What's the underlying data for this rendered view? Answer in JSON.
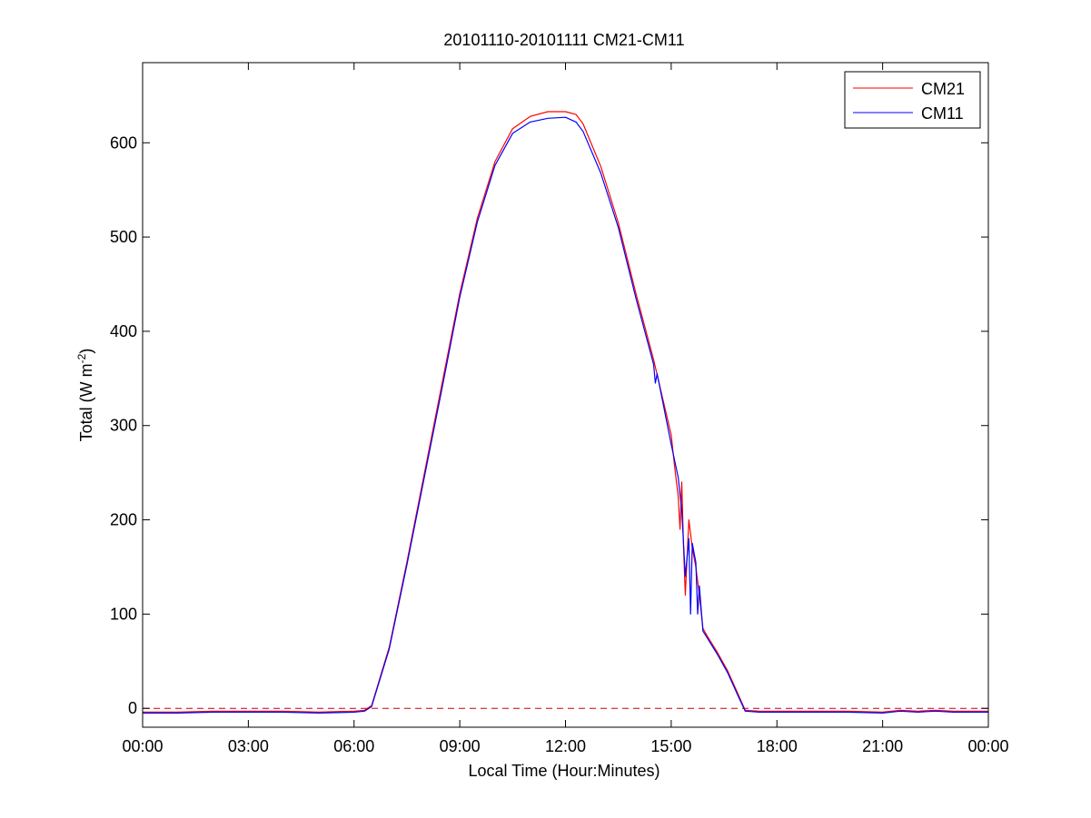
{
  "chart_data": {
    "type": "line",
    "title": "20101110-20101111 CM21-CM11",
    "xlabel": "Local Time (Hour:Minutes)",
    "ylabel_main": "Total (W m",
    "ylabel_sup": "-2",
    "ylabel_close": ")",
    "xlim": [
      0,
      24
    ],
    "ylim": [
      -20,
      685
    ],
    "xticks": [
      0,
      3,
      6,
      9,
      12,
      15,
      18,
      21,
      24
    ],
    "xtick_labels": [
      "00:00",
      "03:00",
      "06:00",
      "09:00",
      "12:00",
      "15:00",
      "18:00",
      "21:00",
      "00:00"
    ],
    "yticks": [
      0,
      100,
      200,
      300,
      400,
      500,
      600
    ],
    "ytick_labels": [
      "0",
      "100",
      "200",
      "300",
      "400",
      "500",
      "600"
    ],
    "grid": false,
    "legend_position": "top-right",
    "reference_line": {
      "y": 0,
      "color": "#cc0000",
      "style": "dashed"
    },
    "series": [
      {
        "name": "CM21",
        "color": "#ff0000",
        "x": [
          0,
          1,
          2,
          3,
          4,
          5,
          6,
          6.3,
          6.5,
          7,
          7.5,
          8,
          8.5,
          9,
          9.5,
          10,
          10.5,
          11,
          11.5,
          12,
          12.3,
          12.5,
          13,
          13.5,
          14,
          14.5,
          15,
          15.1,
          15.2,
          15.25,
          15.3,
          15.35,
          15.4,
          15.5,
          15.6,
          15.7,
          15.8,
          15.9,
          16,
          16.3,
          16.6,
          16.9,
          17.1,
          17.5,
          18,
          19,
          20,
          21,
          21.5,
          22,
          22.5,
          23,
          24
        ],
        "y": [
          -4,
          -4,
          -3,
          -3,
          -3,
          -4,
          -3,
          -2,
          3,
          65,
          155,
          250,
          345,
          440,
          520,
          580,
          615,
          628,
          633,
          633,
          630,
          620,
          575,
          515,
          440,
          370,
          290,
          255,
          225,
          190,
          240,
          170,
          120,
          200,
          170,
          150,
          120,
          85,
          78,
          60,
          40,
          15,
          -2,
          -3,
          -3,
          -3,
          -3,
          -4,
          -2,
          -3,
          -2,
          -3,
          -3
        ]
      },
      {
        "name": "CM11",
        "color": "#0000ff",
        "x": [
          0,
          1,
          2,
          3,
          4,
          5,
          6,
          6.3,
          6.5,
          7,
          7.5,
          8,
          8.5,
          9,
          9.5,
          10,
          10.5,
          11,
          11.5,
          12,
          12.3,
          12.5,
          13,
          13.5,
          14,
          14.5,
          14.55,
          14.6,
          15,
          15.2,
          15.3,
          15.4,
          15.5,
          15.55,
          15.6,
          15.7,
          15.75,
          15.8,
          15.9,
          16,
          16.3,
          16.6,
          16.9,
          17.1,
          17.5,
          18,
          19,
          20,
          21,
          21.5,
          22,
          22.5,
          23,
          24
        ],
        "y": [
          -5,
          -5,
          -4,
          -4,
          -4,
          -5,
          -4,
          -3,
          2,
          63,
          152,
          246,
          340,
          436,
          516,
          576,
          610,
          622,
          626,
          627,
          622,
          612,
          568,
          510,
          435,
          365,
          345,
          355,
          280,
          245,
          210,
          140,
          180,
          100,
          175,
          155,
          100,
          130,
          82,
          76,
          58,
          38,
          13,
          -3,
          -4,
          -4,
          -4,
          -4,
          -5,
          -3,
          -4,
          -3,
          -4,
          -4
        ]
      }
    ]
  }
}
